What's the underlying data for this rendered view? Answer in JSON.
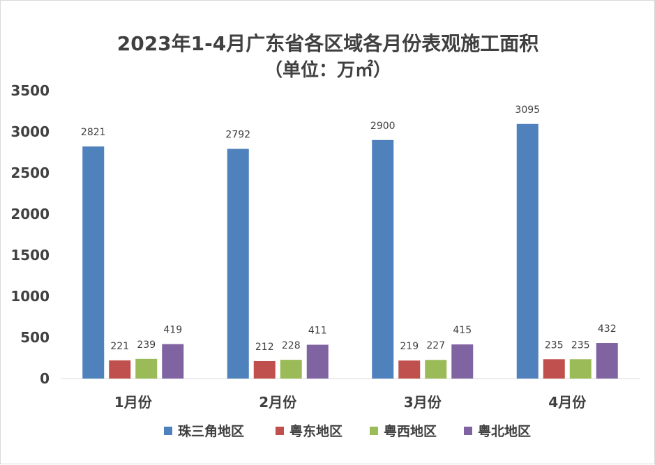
{
  "chart_data": {
    "type": "bar",
    "title": "2023年1-4月广东省各区域各月份表观施工面积",
    "subtitle": "（单位：万㎡）",
    "categories": [
      "1月份",
      "2月份",
      "3月份",
      "4月份"
    ],
    "series": [
      {
        "name": "珠三角地区",
        "color": "#4F81BD",
        "values": [
          2821,
          2792,
          2900,
          3095
        ]
      },
      {
        "name": "粤东地区",
        "color": "#C0504D",
        "values": [
          221,
          212,
          219,
          235
        ]
      },
      {
        "name": "粤西地区",
        "color": "#9BBB59",
        "values": [
          239,
          228,
          227,
          235
        ]
      },
      {
        "name": "粤北地区",
        "color": "#8064A2",
        "values": [
          419,
          411,
          415,
          432
        ]
      }
    ],
    "ylim": [
      0,
      3500
    ],
    "yticks": [
      0,
      500,
      1000,
      1500,
      2000,
      2500,
      3000,
      3500
    ],
    "xlabel": "",
    "ylabel": "",
    "grid": false,
    "legend_position": "bottom"
  }
}
